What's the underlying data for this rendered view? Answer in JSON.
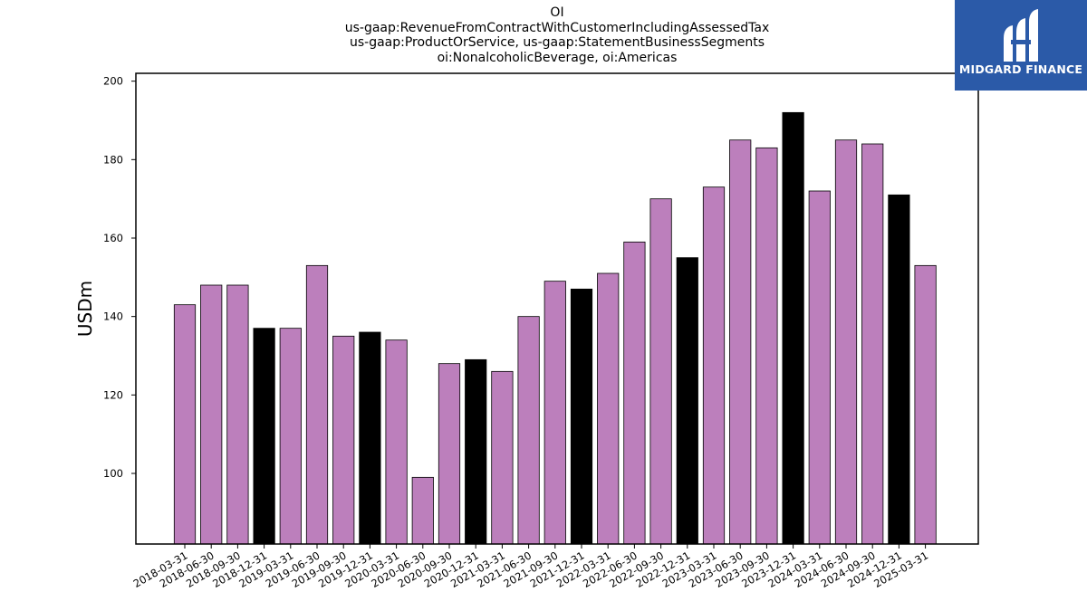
{
  "title_lines": [
    "OI",
    "us-gaap:RevenueFromContractWithCustomerIncludingAssessedTax",
    "us-gaap:ProductOrService, us-gaap:StatementBusinessSegments",
    "oi:NonalcoholicBeverage, oi:Americas"
  ],
  "logo": {
    "text": "MIDGARD FINANCE",
    "background": "#2b5aa8"
  },
  "chart_data": {
    "type": "bar",
    "ylabel": "USDm",
    "xlabel": "",
    "ylim": [
      82,
      202
    ],
    "yticks": [
      100,
      120,
      140,
      160,
      180,
      200
    ],
    "grid": false,
    "colors": {
      "quarter": "#bc7fbc",
      "year_end": "#000000"
    },
    "categories": [
      "2018-03-31",
      "2018-06-30",
      "2018-09-30",
      "2018-12-31",
      "2019-03-31",
      "2019-06-30",
      "2019-09-30",
      "2019-12-31",
      "2020-03-31",
      "2020-06-30",
      "2020-09-30",
      "2020-12-31",
      "2021-03-31",
      "2021-06-30",
      "2021-09-30",
      "2021-12-31",
      "2022-03-31",
      "2022-06-30",
      "2022-09-30",
      "2022-12-31",
      "2023-03-31",
      "2023-06-30",
      "2023-09-30",
      "2023-12-31",
      "2024-03-31",
      "2024-06-30",
      "2024-09-30",
      "2024-12-31",
      "2025-03-31"
    ],
    "values": [
      143,
      148,
      148,
      137,
      137,
      153,
      135,
      136,
      134,
      99,
      128,
      129,
      126,
      140,
      149,
      147,
      151,
      159,
      170,
      155,
      173,
      185,
      183,
      192,
      172,
      185,
      184,
      171,
      153
    ]
  }
}
